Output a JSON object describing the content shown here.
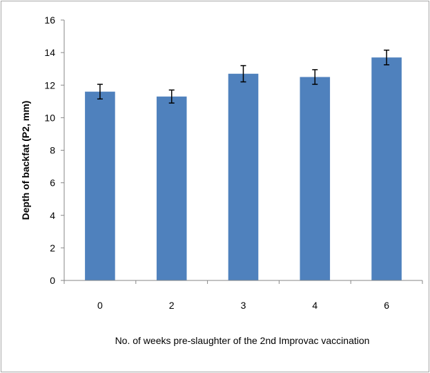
{
  "chart_data": {
    "type": "bar",
    "categories": [
      "0",
      "2",
      "3",
      "4",
      "6"
    ],
    "series": [
      {
        "values": [
          11.6,
          11.3,
          12.7,
          12.5,
          13.7
        ],
        "errors": [
          0.45,
          0.4,
          0.5,
          0.45,
          0.45
        ]
      }
    ],
    "xlabel": "No. of weeks pre-slaughter of the 2nd Improvac vaccination",
    "ylabel": "Depth of backfat (P2, mm)",
    "ylim": [
      0,
      16
    ],
    "yticks": [
      0,
      2,
      4,
      6,
      8,
      10,
      12,
      14,
      16
    ],
    "grid": false,
    "legend": "none",
    "bar_color": "#4f81bd",
    "error_bar_color": "#000000"
  }
}
